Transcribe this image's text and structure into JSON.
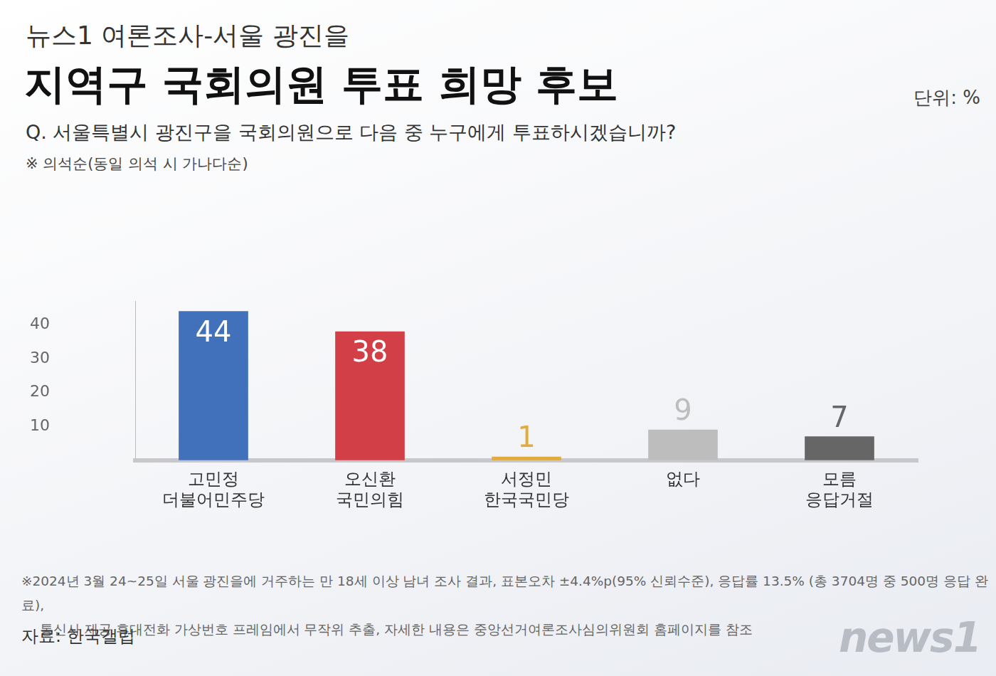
{
  "chart_data": {
    "type": "bar",
    "supertitle": "뉴스1 여론조사-서울 광진을",
    "title": "지역구 국회의원 투표 희망 후보",
    "unit": "단위: %",
    "subtitle": "Q. 서울특별시 광진구을 국회의원으로 다음 중 누구에게 투표하시겠습니까?",
    "note": "※ 의석순(동일 의석 시 가나다순)",
    "categories": [
      [
        "고민정",
        "더불어민주당"
      ],
      [
        "오신환",
        "국민의힘"
      ],
      [
        "서정민",
        "한국국민당"
      ],
      [
        "없다"
      ],
      [
        "모름",
        "응답거절"
      ]
    ],
    "values": [
      44,
      38,
      1,
      9,
      7
    ],
    "colors": [
      "#4271bb",
      "#d33f46",
      "#e2ab3c",
      "#bdbdbd",
      "#666666"
    ],
    "ylim": [
      0,
      47
    ],
    "yticks": [
      10,
      20,
      30,
      40
    ],
    "grid": false,
    "data_labels": true,
    "footnote": [
      "※2024년 3월 24~25일 서울 광진을에 거주하는 만 18세 이상 남녀 조사 결과, 표본오차 ±4.4%p(95% 신뢰수준), 응답률 13.5% (총 3704명 중 500명 응답 완료),",
      "통신사 제공 휴대전화 가상번호 프레임에서 무작위 추출, 자세한 내용은 중앙선거여론조사심의위원회 홈페이지를 참조"
    ],
    "source": "자료: 한국갤럽",
    "logo": "news1"
  }
}
